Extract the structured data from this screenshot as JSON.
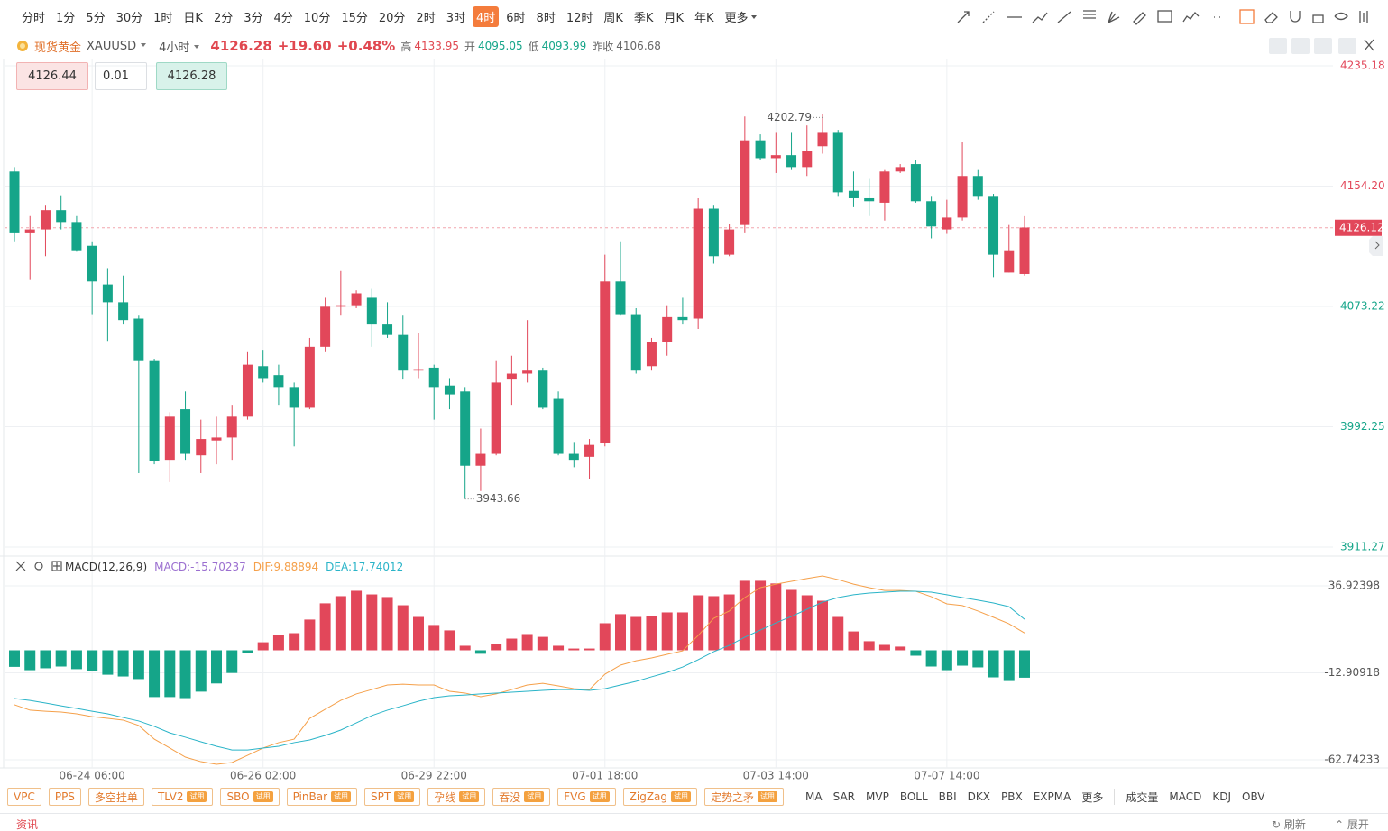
{
  "toolbar": {
    "periods": [
      "分时",
      "1分",
      "5分",
      "30分",
      "1时",
      "日K",
      "2分",
      "3分",
      "4分",
      "10分",
      "15分",
      "20分",
      "2时",
      "3时",
      "4时",
      "6时",
      "8时",
      "12时",
      "周K",
      "季K",
      "月K",
      "年K",
      "更多"
    ],
    "active": 14
  },
  "header": {
    "name": "现货黄金",
    "symbol": "XAUUSD",
    "period": "4小时",
    "price": "4126.28",
    "change": "+19.60",
    "change_pct": "+0.48%",
    "high_label": "高",
    "high": "4133.95",
    "open_label": "开",
    "open": "4095.05",
    "low_label": "低",
    "low": "4093.99",
    "prev_label": "昨收",
    "prev": "4106.68"
  },
  "order": {
    "sell": "4126.44",
    "lots": "0.01",
    "buy": "4126.28"
  },
  "chart_data": [
    {
      "type": "candlestick",
      "up_color": "#e2475a",
      "down_color": "#15a589",
      "categories": [
        null,
        null,
        null,
        null,
        null,
        "06-24 06:00",
        null,
        null,
        null,
        null,
        null,
        null,
        null,
        null,
        null,
        null,
        "06-26 02:00",
        null,
        null,
        null,
        null,
        null,
        null,
        null,
        null,
        null,
        null,
        "06-29 22:00",
        null,
        null,
        null,
        null,
        null,
        null,
        null,
        null,
        null,
        null,
        "07-01 18:00",
        null,
        null,
        null,
        null,
        null,
        null,
        null,
        null,
        null,
        null,
        "07-03 14:00",
        null,
        null,
        null,
        null,
        null,
        null,
        null,
        null,
        null,
        null,
        "07-07 14:00",
        null,
        null,
        null,
        null,
        null
      ],
      "open": [
        4164,
        4123,
        4125,
        4138,
        4130,
        4114,
        4088,
        4076,
        4065,
        4037,
        3970,
        4004,
        3973,
        3983,
        3985,
        3999,
        4033,
        4027,
        4019,
        4005,
        4046,
        4073,
        4074,
        4079,
        4061,
        4054,
        4030,
        4032,
        4020,
        4016,
        3966,
        3974,
        4024,
        4028,
        4030,
        4011,
        3974,
        3972,
        3981,
        4090,
        4068,
        4033,
        4049,
        4066,
        4065,
        4139,
        4108,
        4128,
        4185,
        4173,
        4175,
        4167,
        4181,
        4190,
        4151,
        4146,
        4143,
        4164,
        4169,
        4144,
        4125,
        4133,
        4161,
        4147,
        4096,
        4095.05
      ],
      "high": [
        4167,
        4134,
        4141,
        4148,
        4134,
        4117,
        4099,
        4094,
        4067,
        4038,
        4002,
        4016,
        3997,
        3999,
        4007,
        4043,
        4044,
        4034,
        4022,
        4052,
        4079,
        4097,
        4084,
        4085,
        4076,
        4067,
        4055,
        4034,
        4025,
        4019,
        3991,
        4037,
        4040,
        4064,
        4032,
        4016,
        3982,
        3984,
        4108,
        4117,
        4072,
        4052,
        4074,
        4079,
        4146,
        4141,
        4129,
        4201,
        4189,
        4190,
        4190,
        4195,
        4202.79,
        4192,
        4164,
        4159,
        4165,
        4169,
        4172,
        4147,
        4145,
        4184,
        4165,
        4149,
        4128,
        4133.95
      ],
      "low": [
        4117,
        4091,
        4107,
        4125,
        4110,
        4068,
        4050,
        4061,
        3961,
        3967,
        3955,
        3970,
        3961,
        3967,
        3970,
        3997,
        4022,
        4007,
        3979,
        4004,
        4043,
        4067,
        4072,
        4046,
        4052,
        4024,
        4025,
        3997,
        4004,
        3943.66,
        3949,
        3973,
        4007,
        4022,
        4004,
        3973,
        3965,
        3957,
        3979,
        4067,
        4028,
        4030,
        4040,
        4061,
        4058,
        4102,
        4107,
        4123,
        4172,
        4163,
        4165,
        4161,
        4176,
        4147,
        4140,
        4134,
        4131,
        4163,
        4143,
        4119,
        4122,
        4131,
        4145,
        4093,
        4096,
        4093.99
      ],
      "close": [
        4123,
        4125,
        4138,
        4130,
        4111,
        4090,
        4076,
        4064,
        4037,
        3969,
        3999,
        3974,
        3984,
        3985,
        3999,
        4034,
        4025,
        4019,
        4005,
        4046,
        4073,
        4074,
        4082,
        4061,
        4054,
        4030,
        4031,
        4019,
        4014,
        3966,
        3974,
        4022,
        4028,
        4030,
        4005,
        3974,
        3970,
        3980,
        4090,
        4068,
        4030,
        4049,
        4066,
        4064,
        4139,
        4107,
        4125,
        4185,
        4173,
        4175,
        4167,
        4178,
        4190,
        4150,
        4146,
        4144,
        4164,
        4167,
        4144,
        4127,
        4133,
        4161,
        4147,
        4108,
        4111,
        4126.28
      ],
      "ylim": [
        3906.4,
        4240.0
      ],
      "yticks": [
        4235.18,
        {
          "value": 4154.2,
          "label": "4154.20"
        },
        4073.22,
        3992.25,
        3911.27
      ],
      "grid": true,
      "last_price": 4126.12,
      "high_label": "4202.79",
      "low_label": "3943.66"
    },
    {
      "type": "macd",
      "title": "MACD(12,26,9)",
      "legend": [
        "MACD:-15.70237",
        "DIF:9.88894",
        "DEA:17.74012"
      ],
      "series": [
        {
          "name": "MACD",
          "up_color": "#e2475a",
          "down_color": "#15a589",
          "values": [
            -9.5,
            -11.4,
            -10.3,
            -9.3,
            -10.8,
            -11.9,
            -14,
            -15,
            -16.5,
            -26.8,
            -26.8,
            -27.4,
            -23.7,
            -19,
            -13,
            -1.5,
            4.6,
            8.8,
            9.8,
            17.6,
            26.9,
            31,
            34.1,
            32,
            30.5,
            25.8,
            19.1,
            14.5,
            11.4,
            2.6,
            -2,
            3.6,
            6.7,
            9.3,
            7.7,
            2.6,
            1,
            1,
            15.5,
            20.7,
            19.1,
            19.6,
            21.7,
            21.7,
            31.5,
            31,
            32,
            39.8,
            39.8,
            38.3,
            34.6,
            31.5,
            28.4,
            19.1,
            10.8,
            5.2,
            3.1,
            2.1,
            -3.1,
            -9.3,
            -11.4,
            -8.8,
            -9.8,
            -15.5,
            -17.6,
            -15.70237
          ]
        },
        {
          "name": "DIF",
          "color": "#f5a04a",
          "values": [
            -31.2,
            -34.3,
            -34.9,
            -35.4,
            -36.4,
            -38.0,
            -39.0,
            -40.0,
            -43.1,
            -50.9,
            -56.0,
            -61.2,
            -63.8,
            -65.3,
            -64.3,
            -60.2,
            -56.0,
            -52.9,
            -50.9,
            -39.0,
            -33.8,
            -28.7,
            -25.0,
            -22.5,
            -19.9,
            -19.4,
            -19.9,
            -19.9,
            -23.5,
            -24.5,
            -26.6,
            -25.0,
            -22.5,
            -19.9,
            -18.9,
            -20.4,
            -22.0,
            -22.5,
            -13.7,
            -8.5,
            -6.0,
            -4.4,
            -2.3,
            -0.3,
            8.5,
            18.3,
            22.5,
            30.2,
            35.9,
            37.9,
            39.5,
            41.1,
            42.6,
            40.5,
            37.9,
            35.9,
            34.3,
            34.3,
            33.8,
            30.7,
            26.6,
            25.6,
            22.5,
            18.9,
            15.2,
            9.88894
          ]
        },
        {
          "name": "DEA",
          "color": "#2ab4c8",
          "values": [
            -27.6,
            -28.7,
            -30.2,
            -31.8,
            -33.3,
            -34.9,
            -36.4,
            -38.5,
            -40.5,
            -43.6,
            -47.3,
            -49.8,
            -52.4,
            -55.0,
            -57.1,
            -57.1,
            -56.0,
            -55.0,
            -52.9,
            -51.4,
            -48.8,
            -45.7,
            -41.6,
            -37.4,
            -34.3,
            -31.8,
            -29.2,
            -27.1,
            -26.1,
            -25.6,
            -25.0,
            -24.5,
            -24.0,
            -23.5,
            -23.0,
            -22.5,
            -22.5,
            -23.0,
            -22.0,
            -19.9,
            -17.8,
            -15.2,
            -12.7,
            -9.6,
            -5.4,
            -0.8,
            2.8,
            7.5,
            11.6,
            15.7,
            19.4,
            23.5,
            27.6,
            30.2,
            31.8,
            32.8,
            33.3,
            33.8,
            33.8,
            33.3,
            31.8,
            30.2,
            28.7,
            27.1,
            25.0,
            17.74012
          ]
        }
      ],
      "ylim": [
        -67.39,
        44.15
      ],
      "yticks": [
        36.92398,
        -12.90918,
        -62.74233
      ]
    }
  ],
  "indicator_bar": {
    "badge": "试用",
    "tools": [
      {
        "name": "VPC"
      },
      {
        "name": "PPS"
      },
      {
        "name": "多空挂单"
      },
      {
        "name": "TLV2",
        "trial": true
      },
      {
        "name": "SBO",
        "trial": true
      },
      {
        "name": "PinBar",
        "trial": true
      },
      {
        "name": "SPT",
        "trial": true
      },
      {
        "name": "孕线",
        "trial": true
      },
      {
        "name": "吞没",
        "trial": true
      },
      {
        "name": "FVG",
        "trial": true
      },
      {
        "name": "ZigZag",
        "trial": true
      },
      {
        "name": "定势之矛",
        "trial": true
      }
    ],
    "main": [
      "MA",
      "SAR",
      "MVP",
      "BOLL",
      "BBI",
      "DKX",
      "PBX",
      "EXPMA"
    ],
    "more": "更多",
    "sub": [
      "成交量",
      "MACD",
      "KDJ",
      "OBV"
    ]
  },
  "footer": {
    "news": "资讯",
    "refresh": "刷新",
    "expand": "展开"
  }
}
